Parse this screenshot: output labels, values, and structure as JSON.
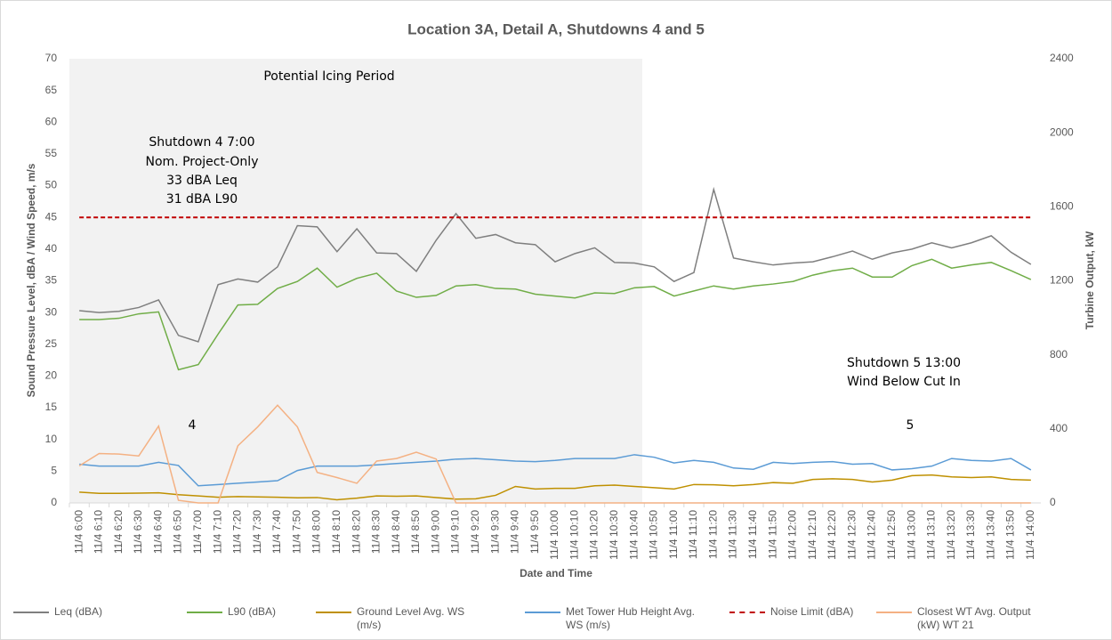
{
  "chart_data": {
    "type": "line",
    "title": "Location 3A, Detail A, Shutdowns 4 and 5",
    "x_label": "Date and Time",
    "y_label": "Sound Pressure Level, dBA / Wind Speed, m/s",
    "y2_label": "Turbine Output, kW",
    "annotations": {
      "icing": "Potential Icing Period",
      "shutdown4": [
        "Shutdown 4 7:00",
        "Nom. Project-Only",
        "33 dBA Leq",
        "31 dBA L90"
      ],
      "shutdown5": [
        "Shutdown 5 13:00",
        "Wind Below Cut In"
      ],
      "label4": "4",
      "label5": "5"
    },
    "categories": [
      "11/4 6:00",
      "11/4 6:10",
      "11/4 6:20",
      "11/4 6:30",
      "11/4 6:40",
      "11/4 6:50",
      "11/4 7:00",
      "11/4 7:10",
      "11/4 7:20",
      "11/4 7:30",
      "11/4 7:40",
      "11/4 7:50",
      "11/4 8:00",
      "11/4 8:10",
      "11/4 8:20",
      "11/4 8:30",
      "11/4 8:40",
      "11/4 8:50",
      "11/4 9:00",
      "11/4 9:10",
      "11/4 9:20",
      "11/4 9:30",
      "11/4 9:40",
      "11/4 9:50",
      "11/4 10:00",
      "11/4 10:10",
      "11/4 10:20",
      "11/4 10:30",
      "11/4 10:40",
      "11/4 10:50",
      "11/4 11:00",
      "11/4 11:10",
      "11/4 11:20",
      "11/4 11:30",
      "11/4 11:40",
      "11/4 11:50",
      "11/4 12:00",
      "11/4 12:10",
      "11/4 12:20",
      "11/4 12:30",
      "11/4 12:40",
      "11/4 12:50",
      "11/4 13:00",
      "11/4 13:10",
      "11/4 13:20",
      "11/4 13:30",
      "11/4 13:40",
      "11/4 13:50",
      "11/4 14:00"
    ],
    "series": [
      {
        "name": "Leq (dBA)",
        "color": "#7f7f7f",
        "values": [
          30.3,
          30.0,
          30.2,
          30.8,
          32.0,
          26.4,
          25.4,
          34.4,
          35.3,
          34.8,
          37.2,
          43.7,
          43.5,
          39.6,
          43.2,
          39.4,
          39.3,
          36.5,
          41.4,
          45.6,
          41.7,
          42.3,
          41.0,
          40.7,
          38.0,
          39.3,
          40.2,
          37.9,
          37.8,
          37.2,
          34.9,
          36.3,
          49.4,
          38.6,
          38.0,
          37.5,
          37.8,
          38.0,
          38.8,
          39.7,
          38.4,
          39.4,
          40.0,
          41.0,
          40.2,
          41.0,
          42.1,
          39.5,
          37.6
        ]
      },
      {
        "name": "L90 (dBA)",
        "color": "#70ad47",
        "values": [
          28.9,
          28.9,
          29.1,
          29.8,
          30.1,
          21.0,
          21.8,
          26.6,
          31.2,
          31.3,
          33.8,
          34.9,
          37.0,
          34.0,
          35.4,
          36.2,
          33.4,
          32.4,
          32.7,
          34.2,
          34.4,
          33.8,
          33.7,
          32.9,
          32.6,
          32.3,
          33.1,
          33.0,
          33.9,
          34.1,
          32.6,
          33.4,
          34.2,
          33.7,
          34.2,
          34.5,
          34.9,
          35.9,
          36.6,
          37.0,
          35.6,
          35.6,
          37.4,
          38.4,
          37.0,
          37.5,
          37.9,
          36.6,
          35.2
        ]
      },
      {
        "name": "Ground Level Avg. WS (m/s)",
        "color": "#bf9000",
        "values": [
          1.7,
          1.5,
          1.5,
          1.55,
          1.6,
          1.3,
          1.1,
          0.9,
          1.0,
          0.95,
          0.9,
          0.8,
          0.85,
          0.5,
          0.75,
          1.1,
          1.05,
          1.1,
          0.85,
          0.6,
          0.65,
          1.2,
          2.6,
          2.2,
          2.3,
          2.3,
          2.7,
          2.8,
          2.6,
          2.4,
          2.2,
          2.9,
          2.85,
          2.7,
          2.9,
          3.2,
          3.1,
          3.7,
          3.8,
          3.7,
          3.3,
          3.6,
          4.3,
          4.4,
          4.1,
          4.0,
          4.1,
          3.7,
          3.6
        ]
      },
      {
        "name": "Met Tower Hub Height Avg. WS (m/s)",
        "color": "#5b9bd5",
        "values": [
          6.1,
          5.8,
          5.8,
          5.8,
          6.4,
          5.9,
          2.7,
          2.9,
          3.1,
          3.3,
          3.5,
          5.1,
          5.8,
          5.8,
          5.8,
          6.0,
          6.2,
          6.4,
          6.6,
          6.9,
          7.0,
          6.8,
          6.6,
          6.5,
          6.7,
          7.0,
          7.0,
          7.0,
          7.6,
          7.2,
          6.3,
          6.7,
          6.4,
          5.5,
          5.3,
          6.4,
          6.2,
          6.4,
          6.5,
          6.1,
          6.2,
          5.2,
          5.4,
          5.8,
          7.0,
          6.7,
          6.6,
          7.0,
          5.2
        ]
      },
      {
        "name": "Noise Limit (dBA)",
        "color": "#c00000",
        "dashed": true,
        "values": [
          45,
          45,
          45,
          45,
          45,
          45,
          45,
          45,
          45,
          45,
          45,
          45,
          45,
          45,
          45,
          45,
          45,
          45,
          45,
          45,
          45,
          45,
          45,
          45,
          45,
          45,
          45,
          45,
          45,
          45,
          45,
          45,
          45,
          45,
          45,
          45,
          45,
          45,
          45,
          45,
          45,
          45,
          45,
          45,
          45,
          45,
          45,
          45,
          45
        ]
      },
      {
        "name": "Closest WT Avg. Output (kW) WT 21",
        "color": "#f4b183",
        "axis": "y2",
        "values": [
          200,
          267,
          264,
          254,
          415,
          14,
          0,
          0,
          309,
          411,
          528,
          411,
          165,
          137,
          106,
          226,
          240,
          274,
          237,
          0,
          0,
          0,
          0,
          0,
          0,
          0,
          0,
          0,
          0,
          0,
          0,
          0,
          0,
          0,
          0,
          0,
          0,
          0,
          0,
          0,
          0,
          0,
          0,
          0,
          0,
          0,
          0,
          0,
          0
        ]
      }
    ],
    "ylim": [
      0,
      70
    ],
    "yticks": [
      0,
      5,
      10,
      15,
      20,
      25,
      30,
      35,
      40,
      45,
      50,
      55,
      60,
      65,
      70
    ],
    "y2lim": [
      0,
      2400
    ],
    "y2ticks": [
      0,
      400,
      800,
      1200,
      1600,
      2000,
      2400
    ],
    "grid": false
  }
}
